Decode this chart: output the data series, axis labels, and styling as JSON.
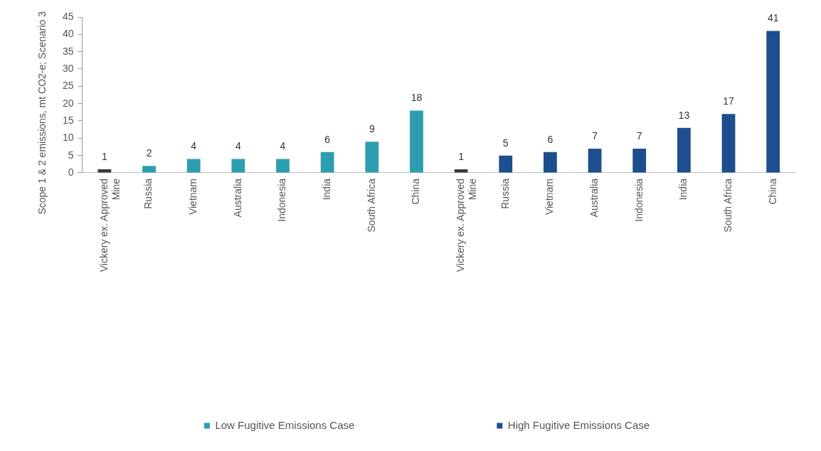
{
  "chart_data": {
    "type": "bar",
    "ylabel": "Scope 1 & 2 emissions, mt CO2-e; Scenario 3",
    "categories": [
      "Vickery ex. Approved Mine",
      "Russia",
      "Vietnam",
      "Australia",
      "Indonesia",
      "India",
      "South Africa",
      "China",
      "Vickery ex. Approved Mine",
      "Russia",
      "Vietnam",
      "Australia",
      "Indonesia",
      "India",
      "South Africa",
      "China"
    ],
    "series": [
      {
        "name": "Low Fugitive Emissions Case",
        "color": "#2f9db0",
        "colors": [
          "#3a3a3a",
          "#2f9db0",
          "#2f9db0",
          "#2f9db0",
          "#2f9db0",
          "#2f9db0",
          "#2f9db0",
          "#2f9db0",
          "#2f9db0",
          "#2f9db0",
          "#2f9db0",
          "#2f9db0",
          "#2f9db0",
          "#2f9db0",
          "#2f9db0",
          "#2f9db0"
        ],
        "values": [
          1,
          2,
          4,
          4,
          4,
          6,
          9,
          18,
          null,
          null,
          null,
          null,
          null,
          null,
          null,
          null
        ]
      },
      {
        "name": "High Fugitive Emissions Case",
        "color": "#1d4f8f",
        "colors": [
          "#1d4f8f",
          "#1d4f8f",
          "#1d4f8f",
          "#1d4f8f",
          "#1d4f8f",
          "#1d4f8f",
          "#1d4f8f",
          "#1d4f8f",
          "#3a3a3a",
          "#1d4f8f",
          "#1d4f8f",
          "#1d4f8f",
          "#1d4f8f",
          "#1d4f8f",
          "#1d4f8f",
          "#1d4f8f"
        ],
        "values": [
          null,
          null,
          null,
          null,
          null,
          null,
          null,
          null,
          1,
          5,
          6,
          7,
          7,
          13,
          17,
          41
        ]
      }
    ],
    "ylim": [
      0,
      45
    ],
    "yticks": [
      0,
      5,
      10,
      15,
      20,
      25,
      30,
      35,
      40,
      45
    ],
    "data_labels": true,
    "legend": "bottom",
    "grid": false
  }
}
